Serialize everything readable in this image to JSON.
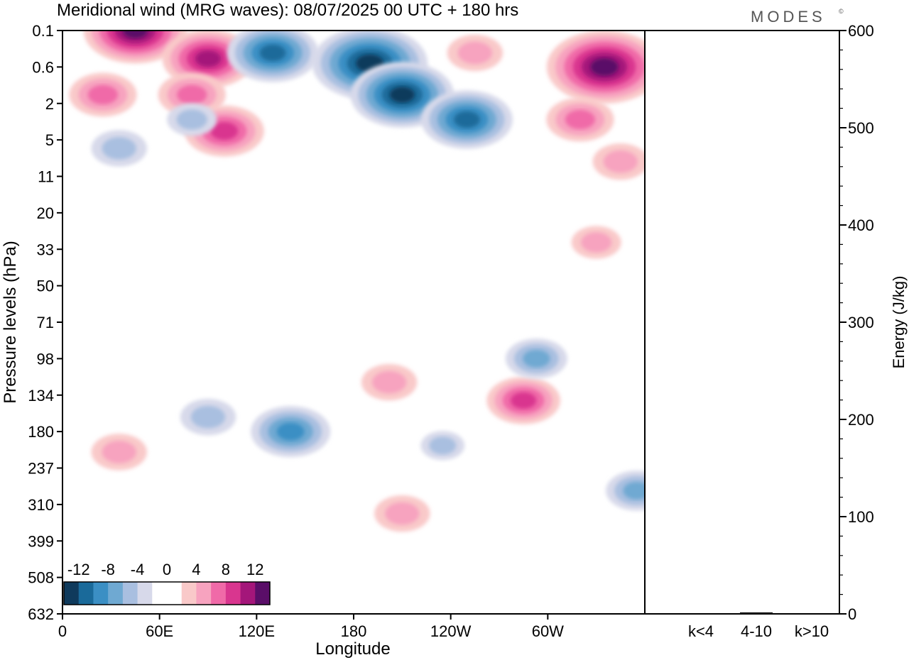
{
  "title": "Meridional wind (MRG waves):  08/07/2025  00 UTC  + 180 hrs",
  "logo_text": "MODES",
  "logo_mark": "©",
  "chart_data": [
    {
      "type": "heatmap",
      "name": "meridional-wind-cross-section",
      "xlabel": "Longitude",
      "ylabel": "Pressure levels (hPa)",
      "x_ticks": [
        "0",
        "60E",
        "120E",
        "180",
        "120W",
        "60W"
      ],
      "y_ticks": [
        "0.1",
        "0.6",
        "2",
        "5",
        "11",
        "20",
        "33",
        "50",
        "71",
        "98",
        "134",
        "180",
        "237",
        "310",
        "399",
        "508",
        "632"
      ],
      "colorbar": {
        "tick_labels": [
          "-12",
          "-8",
          "-4",
          "0",
          "4",
          "8",
          "12"
        ],
        "colors": [
          "#0f3a5c",
          "#1a6a9a",
          "#3b8fc4",
          "#6fa9d2",
          "#a9bfe0",
          "#d7d9ea",
          "#ffffff",
          "#ffffff",
          "#f9c9c9",
          "#f7a3bf",
          "#f06aa8",
          "#d9368f",
          "#a4167a",
          "#5a0e68"
        ]
      },
      "features": [
        {
          "sign": "positive",
          "lon": 45,
          "level": 0.1,
          "magnitude": 14
        },
        {
          "sign": "positive",
          "lon": 90,
          "level": 0.4,
          "magnitude": 12
        },
        {
          "sign": "positive",
          "lon": 25,
          "level": 1.5,
          "magnitude": 8
        },
        {
          "sign": "positive",
          "lon": 80,
          "level": 1.5,
          "magnitude": 8
        },
        {
          "sign": "positive",
          "lon": 100,
          "level": 4,
          "magnitude": 10
        },
        {
          "sign": "negative",
          "lon": 130,
          "level": 0.3,
          "magnitude": 12
        },
        {
          "sign": "negative",
          "lon": 190,
          "level": 0.5,
          "magnitude": 16
        },
        {
          "sign": "negative",
          "lon": 210,
          "level": 1.5,
          "magnitude": 14
        },
        {
          "sign": "negative",
          "lon": 250,
          "level": 3,
          "magnitude": 12
        },
        {
          "sign": "negative",
          "lon": 35,
          "level": 6,
          "magnitude": 6
        },
        {
          "sign": "negative",
          "lon": 80,
          "level": 3,
          "magnitude": 5
        },
        {
          "sign": "positive",
          "lon": 255,
          "level": 0.3,
          "magnitude": 6
        },
        {
          "sign": "positive",
          "lon": 335,
          "level": 0.6,
          "magnitude": 16
        },
        {
          "sign": "positive",
          "lon": 320,
          "level": 3,
          "magnitude": 8
        },
        {
          "sign": "positive",
          "lon": 345,
          "level": 8,
          "magnitude": 6
        },
        {
          "sign": "positive",
          "lon": 330,
          "level": 30,
          "magnitude": 5
        },
        {
          "sign": "negative",
          "lon": 90,
          "level": 160,
          "magnitude": 6
        },
        {
          "sign": "negative",
          "lon": 141,
          "level": 180,
          "magnitude": 10
        },
        {
          "sign": "positive",
          "lon": 202,
          "level": 120,
          "magnitude": 6
        },
        {
          "sign": "positive",
          "lon": 285,
          "level": 140,
          "magnitude": 9
        },
        {
          "sign": "negative",
          "lon": 293,
          "level": 98,
          "magnitude": 7
        },
        {
          "sign": "positive",
          "lon": 35,
          "level": 210,
          "magnitude": 6
        },
        {
          "sign": "positive",
          "lon": 210,
          "level": 330,
          "magnitude": 6
        },
        {
          "sign": "negative",
          "lon": 355,
          "level": 280,
          "magnitude": 7
        },
        {
          "sign": "negative",
          "lon": 235,
          "level": 200,
          "magnitude": 4
        }
      ]
    },
    {
      "type": "bar",
      "name": "energy-by-wavenumber",
      "ylabel": "Energy (J/kg)",
      "categories": [
        "k<4",
        "4-10",
        "k>10"
      ],
      "values": [
        0.3,
        1.5,
        0.3
      ],
      "ylim": [
        0,
        600
      ],
      "y_ticks": [
        "0",
        "100",
        "200",
        "300",
        "400",
        "500",
        "600"
      ]
    }
  ]
}
